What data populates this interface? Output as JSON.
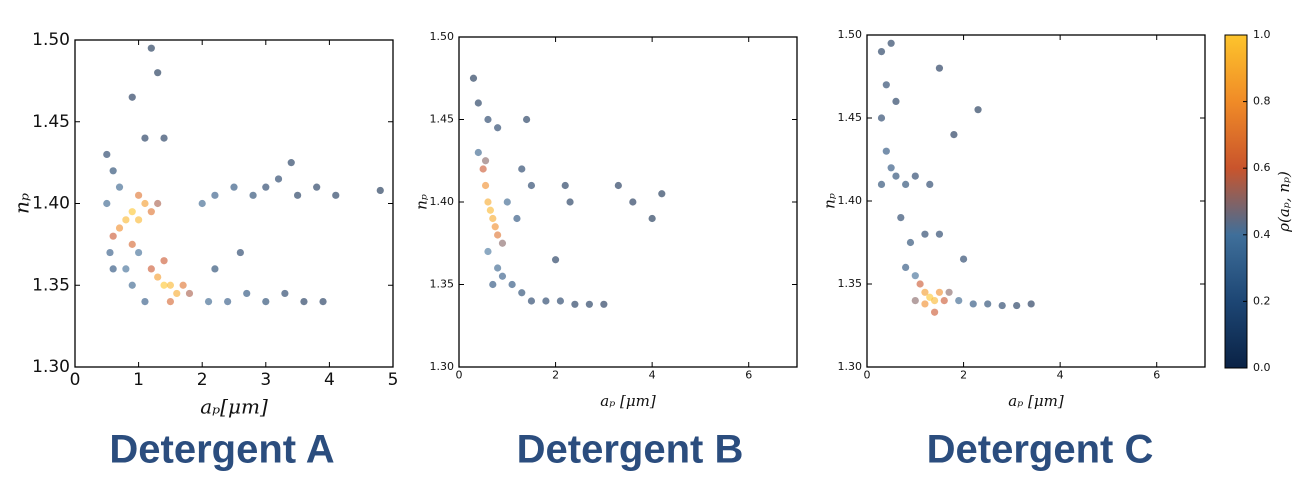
{
  "chart_data": [
    {
      "type": "scatter",
      "title": "Detergent A",
      "x_label": "aₚ[μm]",
      "y_label": "nₚ",
      "xlim": [
        0,
        5
      ],
      "ylim": [
        1.3,
        1.5
      ],
      "xticks": [
        0,
        1,
        2,
        3,
        4,
        5
      ],
      "yticks": [
        {
          "value": 1.3,
          "label": "1.30"
        },
        {
          "value": 1.35,
          "label": "1.35"
        },
        {
          "value": 1.4,
          "label": "1.40"
        },
        {
          "value": 1.45,
          "label": "1.45"
        },
        {
          "value": 1.5,
          "label": "1.50"
        }
      ],
      "x": [
        0.8,
        0.9,
        1.0,
        1.1,
        0.7,
        1.2,
        0.6,
        1.3,
        0.9,
        1.0,
        1.4,
        1.5,
        1.6,
        1.3,
        1.7,
        1.2,
        1.8,
        1.5,
        1.4,
        0.5,
        0.6,
        0.7,
        0.5,
        0.55,
        0.6,
        0.8,
        0.9,
        1.0,
        1.1,
        2.0,
        2.2,
        2.5,
        2.8,
        3.0,
        3.2,
        3.5,
        3.8,
        4.1,
        4.8,
        2.1,
        2.4,
        2.7,
        3.0,
        3.3,
        3.6,
        3.9,
        1.1,
        1.2,
        1.3,
        0.9,
        1.4,
        3.4,
        2.6,
        2.2
      ],
      "values": [
        1.39,
        1.395,
        1.39,
        1.4,
        1.385,
        1.395,
        1.38,
        1.4,
        1.375,
        1.405,
        1.35,
        1.35,
        1.345,
        1.355,
        1.35,
        1.36,
        1.345,
        1.34,
        1.365,
        1.43,
        1.42,
        1.41,
        1.4,
        1.37,
        1.36,
        1.36,
        1.35,
        1.37,
        1.34,
        1.4,
        1.405,
        1.41,
        1.405,
        1.41,
        1.415,
        1.405,
        1.41,
        1.405,
        1.408,
        1.34,
        1.34,
        1.345,
        1.34,
        1.345,
        1.34,
        1.34,
        1.44,
        1.495,
        1.48,
        1.465,
        1.44,
        1.425,
        1.37,
        1.36
      ],
      "density": [
        0.95,
        1.0,
        0.95,
        0.85,
        0.8,
        0.7,
        0.6,
        0.55,
        0.65,
        0.7,
        1.0,
        0.95,
        0.9,
        0.85,
        0.7,
        0.6,
        0.55,
        0.65,
        0.6,
        0.1,
        0.15,
        0.3,
        0.3,
        0.25,
        0.2,
        0.35,
        0.3,
        0.35,
        0.25,
        0.3,
        0.25,
        0.2,
        0.15,
        0.1,
        0.1,
        0.05,
        0.05,
        0.05,
        0.02,
        0.3,
        0.25,
        0.2,
        0.15,
        0.1,
        0.05,
        0.05,
        0.05,
        0.02,
        0.02,
        0.03,
        0.05,
        0.05,
        0.1,
        0.15
      ]
    },
    {
      "type": "scatter",
      "title": "Detergent B",
      "x_label": "aₚ [μm]",
      "y_label": "nₚ",
      "xlim": [
        0,
        7
      ],
      "ylim": [
        1.3,
        1.5
      ],
      "xticks": [
        0,
        2,
        4,
        6
      ],
      "yticks": [
        {
          "value": 1.3,
          "label": "1.30"
        },
        {
          "value": 1.35,
          "label": "1.35"
        },
        {
          "value": 1.4,
          "label": "1.40"
        },
        {
          "value": 1.45,
          "label": "1.45"
        },
        {
          "value": 1.5,
          "label": "1.50"
        }
      ],
      "x": [
        0.3,
        0.4,
        0.6,
        0.8,
        1.4,
        0.5,
        0.55,
        0.6,
        0.65,
        0.7,
        0.75,
        0.8,
        0.55,
        0.9,
        1.0,
        1.2,
        0.8,
        0.9,
        1.1,
        1.3,
        1.5,
        1.8,
        2.1,
        2.4,
        2.7,
        3.0,
        2.2,
        2.3,
        3.3,
        3.6,
        4.0,
        4.2,
        1.3,
        1.5,
        0.4,
        0.6,
        0.7,
        2.0
      ],
      "values": [
        1.475,
        1.46,
        1.45,
        1.445,
        1.45,
        1.42,
        1.41,
        1.4,
        1.395,
        1.39,
        1.385,
        1.38,
        1.425,
        1.375,
        1.4,
        1.39,
        1.36,
        1.355,
        1.35,
        1.345,
        1.34,
        1.34,
        1.34,
        1.338,
        1.338,
        1.338,
        1.41,
        1.4,
        1.41,
        1.4,
        1.39,
        1.405,
        1.42,
        1.41,
        1.43,
        1.37,
        1.35,
        1.365
      ],
      "density": [
        0.02,
        0.05,
        0.1,
        0.1,
        0.05,
        0.6,
        0.8,
        0.9,
        0.95,
        0.9,
        0.8,
        0.7,
        0.5,
        0.5,
        0.3,
        0.2,
        0.3,
        0.25,
        0.2,
        0.15,
        0.1,
        0.1,
        0.1,
        0.05,
        0.05,
        0.03,
        0.05,
        0.05,
        0.03,
        0.03,
        0.02,
        0.02,
        0.1,
        0.1,
        0.3,
        0.4,
        0.2,
        0.05
      ]
    },
    {
      "type": "scatter",
      "title": "Detergent C",
      "x_label": "aₚ [μm]",
      "y_label": "nₚ",
      "xlim": [
        0,
        7
      ],
      "ylim": [
        1.3,
        1.5
      ],
      "xticks": [
        0,
        2,
        4,
        6
      ],
      "yticks": [
        {
          "value": 1.3,
          "label": "1.30"
        },
        {
          "value": 1.35,
          "label": "1.35"
        },
        {
          "value": 1.4,
          "label": "1.40"
        },
        {
          "value": 1.45,
          "label": "1.45"
        },
        {
          "value": 1.5,
          "label": "1.50"
        }
      ],
      "x": [
        0.3,
        0.5,
        0.4,
        0.6,
        0.3,
        0.4,
        0.5,
        0.3,
        0.6,
        0.8,
        1.0,
        1.3,
        1.5,
        1.8,
        2.3,
        0.7,
        0.9,
        1.2,
        0.8,
        1.0,
        1.1,
        1.2,
        1.3,
        1.4,
        1.5,
        1.2,
        1.6,
        1.7,
        1.0,
        1.9,
        2.2,
        2.5,
        2.8,
        3.1,
        3.4,
        1.5,
        2.0,
        1.4
      ],
      "values": [
        1.49,
        1.495,
        1.47,
        1.46,
        1.45,
        1.43,
        1.42,
        1.41,
        1.415,
        1.41,
        1.415,
        1.41,
        1.48,
        1.44,
        1.455,
        1.39,
        1.375,
        1.38,
        1.36,
        1.355,
        1.35,
        1.345,
        1.342,
        1.34,
        1.345,
        1.338,
        1.34,
        1.345,
        1.34,
        1.34,
        1.338,
        1.338,
        1.337,
        1.337,
        1.338,
        1.38,
        1.365,
        1.333
      ],
      "density": [
        0.05,
        0.05,
        0.1,
        0.05,
        0.1,
        0.2,
        0.2,
        0.15,
        0.15,
        0.15,
        0.1,
        0.1,
        0.03,
        0.03,
        0.02,
        0.1,
        0.15,
        0.1,
        0.2,
        0.35,
        0.6,
        0.85,
        1.0,
        0.95,
        0.8,
        0.8,
        0.6,
        0.5,
        0.5,
        0.3,
        0.2,
        0.15,
        0.1,
        0.05,
        0.03,
        0.1,
        0.1,
        0.6
      ],
      "colorbar": {
        "label": "ρ(aₚ, nₚ)",
        "lim": [
          0,
          1
        ],
        "ticks": [
          {
            "value": 0,
            "label": "0.0"
          },
          {
            "value": 0.2,
            "label": "0.2"
          },
          {
            "value": 0.4,
            "label": "0.4"
          },
          {
            "value": 0.6,
            "label": "0.6"
          },
          {
            "value": 0.8,
            "label": "0.8"
          },
          {
            "value": 1,
            "label": "1.0"
          }
        ],
        "colors": [
          "#0a2245",
          "#1d4674",
          "#3f6f9a",
          "#c9542c",
          "#f08b27",
          "#fdc42c"
        ]
      }
    }
  ]
}
